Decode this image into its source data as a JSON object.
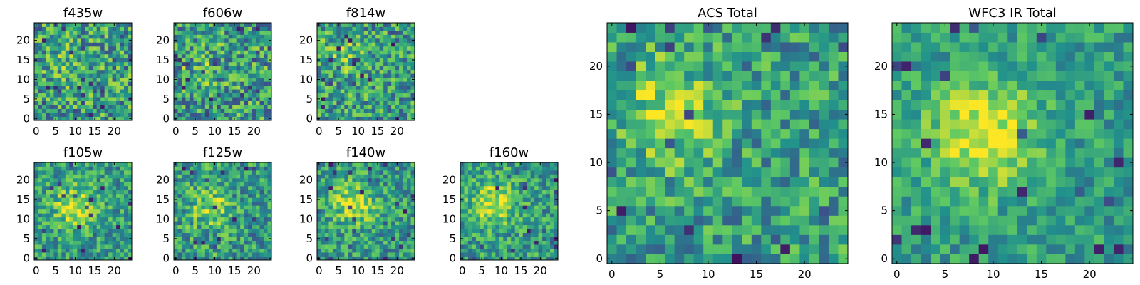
{
  "chart_data": [
    {
      "type": "heatmap",
      "title": "f435w",
      "xlim": [
        0,
        25
      ],
      "ylim": [
        0,
        25
      ],
      "xticks": [
        "0",
        "5",
        "10",
        "15",
        "20"
      ],
      "yticks": [
        "0",
        "5",
        "10",
        "15",
        "20"
      ],
      "grid_size": 25,
      "seed": 11,
      "hotspot": [
        7,
        15
      ],
      "hotspot_strength": 0.1,
      "noise": 0.55
    },
    {
      "type": "heatmap",
      "title": "f606w",
      "xlim": [
        0,
        25
      ],
      "ylim": [
        0,
        25
      ],
      "xticks": [
        "0",
        "5",
        "10",
        "15",
        "20"
      ],
      "yticks": [
        "0",
        "5",
        "10",
        "15",
        "20"
      ],
      "grid_size": 25,
      "seed": 23,
      "hotspot": [
        7,
        14
      ],
      "hotspot_strength": 0.1,
      "noise": 0.55
    },
    {
      "type": "heatmap",
      "title": "f814w",
      "xlim": [
        0,
        25
      ],
      "ylim": [
        0,
        25
      ],
      "xticks": [
        "0",
        "5",
        "10",
        "15",
        "20"
      ],
      "yticks": [
        "0",
        "5",
        "10",
        "15",
        "20"
      ],
      "grid_size": 25,
      "seed": 37,
      "hotspot": [
        6,
        16
      ],
      "hotspot_strength": 0.18,
      "noise": 0.5
    },
    {
      "type": "heatmap",
      "title": "f105w",
      "xlim": [
        0,
        25
      ],
      "ylim": [
        0,
        25
      ],
      "xticks": [
        "0",
        "5",
        "10",
        "15",
        "20"
      ],
      "yticks": [
        "0",
        "5",
        "10",
        "15",
        "20"
      ],
      "grid_size": 25,
      "seed": 41,
      "hotspot": [
        10,
        13
      ],
      "hotspot_strength": 0.35,
      "noise": 0.4
    },
    {
      "type": "heatmap",
      "title": "f125w",
      "xlim": [
        0,
        25
      ],
      "ylim": [
        0,
        25
      ],
      "xticks": [
        "0",
        "5",
        "10",
        "15",
        "20"
      ],
      "yticks": [
        "0",
        "5",
        "10",
        "15",
        "20"
      ],
      "grid_size": 25,
      "seed": 53,
      "hotspot": [
        9,
        13
      ],
      "hotspot_strength": 0.25,
      "noise": 0.45
    },
    {
      "type": "heatmap",
      "title": "f140w",
      "xlim": [
        0,
        25
      ],
      "ylim": [
        0,
        25
      ],
      "xticks": [
        "0",
        "5",
        "10",
        "15",
        "20"
      ],
      "yticks": [
        "0",
        "5",
        "10",
        "15",
        "20"
      ],
      "grid_size": 25,
      "seed": 67,
      "hotspot": [
        9,
        14
      ],
      "hotspot_strength": 0.35,
      "noise": 0.4
    },
    {
      "type": "heatmap",
      "title": "f160w",
      "xlim": [
        0,
        25
      ],
      "ylim": [
        0,
        25
      ],
      "xticks": [
        "0",
        "5",
        "10",
        "15",
        "20"
      ],
      "yticks": [
        "0",
        "5",
        "10",
        "15",
        "20"
      ],
      "grid_size": 25,
      "seed": 79,
      "hotspot": [
        8,
        14
      ],
      "hotspot_strength": 0.38,
      "noise": 0.4
    },
    {
      "type": "heatmap",
      "title": "ACS Total",
      "xlim": [
        0,
        25
      ],
      "ylim": [
        0,
        25
      ],
      "xticks": [
        "0",
        "5",
        "10",
        "15",
        "20"
      ],
      "yticks": [
        "0",
        "5",
        "10",
        "15",
        "20"
      ],
      "grid_size": 25,
      "seed": 97,
      "hotspot": [
        6,
        15
      ],
      "hotspot_strength": 0.3,
      "noise": 0.42
    },
    {
      "type": "heatmap",
      "title": "WFC3 IR Total",
      "xlim": [
        0,
        25
      ],
      "ylim": [
        0,
        25
      ],
      "xticks": [
        "0",
        "5",
        "10",
        "15",
        "20"
      ],
      "yticks": [
        "0",
        "5",
        "10",
        "15",
        "20"
      ],
      "grid_size": 25,
      "seed": 113,
      "hotspot": [
        9,
        13
      ],
      "hotspot_strength": 0.45,
      "noise": 0.3
    }
  ],
  "colors": {
    "colormap": [
      "#440154",
      "#3b528b",
      "#21918c",
      "#5ec962",
      "#fde725"
    ]
  }
}
